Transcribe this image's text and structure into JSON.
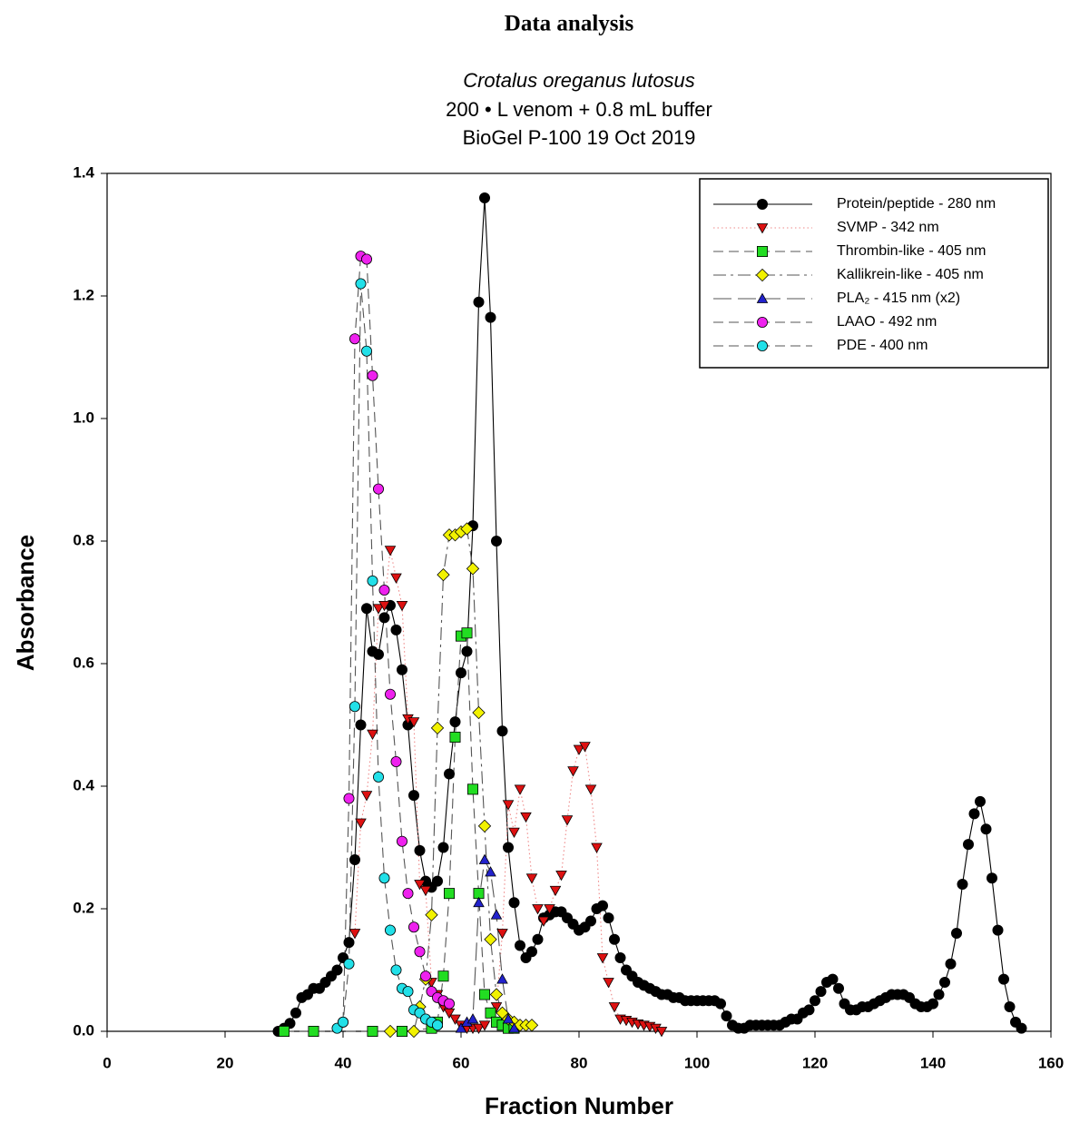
{
  "page_title": "Data analysis",
  "chart_data": {
    "type": "line",
    "title": "Crotalus oreganus lutosus",
    "subtitle": [
      "200 • L venom + 0.8 mL buffer",
      "BioGel P-100 19 Oct 2019"
    ],
    "x_label": "Fraction Number",
    "y_label": "Absorbance",
    "xlim": [
      0,
      160
    ],
    "xticks": [
      0,
      20,
      40,
      60,
      80,
      100,
      120,
      140,
      160
    ],
    "ylim": [
      0,
      1.4
    ],
    "yticks": [
      {
        "value": 0,
        "label": "0.0"
      },
      0.2,
      0.4,
      0.6,
      0.8,
      {
        "value": 1,
        "label": "1.0"
      },
      1.2,
      1.4
    ],
    "grid": false,
    "legend": "upper right",
    "series": [
      {
        "name": "Protein/peptide - 280 nm",
        "color": "#000000",
        "marker": "circle",
        "line_style": "solid",
        "x": [
          29,
          30,
          31,
          32,
          33,
          34,
          35,
          36,
          37,
          38,
          39,
          40,
          41,
          42,
          43,
          44,
          45,
          46,
          47,
          48,
          49,
          50,
          51,
          52,
          53,
          54,
          55,
          56,
          57,
          58,
          59,
          60,
          61,
          62,
          63,
          64,
          65,
          66,
          67,
          68,
          69,
          70,
          71,
          72,
          73,
          74,
          75,
          76,
          77,
          78,
          79,
          80,
          81,
          82,
          83,
          84,
          85,
          86,
          87,
          88,
          89,
          90,
          91,
          92,
          93,
          94,
          95,
          96,
          97,
          98,
          99,
          100,
          101,
          102,
          103,
          104,
          105,
          106,
          107,
          108,
          109,
          110,
          111,
          112,
          113,
          114,
          115,
          116,
          117,
          118,
          119,
          120,
          121,
          122,
          123,
          124,
          125,
          126,
          127,
          128,
          129,
          130,
          131,
          132,
          133,
          134,
          135,
          136,
          137,
          138,
          139,
          140,
          141,
          142,
          143,
          144,
          145,
          146,
          147,
          148,
          149,
          150,
          151,
          152,
          153,
          154,
          155
        ],
        "values": [
          0,
          0.005,
          0.013,
          0.03,
          0.055,
          0.06,
          0.07,
          0.07,
          0.08,
          0.09,
          0.1,
          0.12,
          0.145,
          0.28,
          0.5,
          0.69,
          0.62,
          0.615,
          0.675,
          0.695,
          0.655,
          0.59,
          0.5,
          0.385,
          0.295,
          0.245,
          0.235,
          0.245,
          0.3,
          0.42,
          0.505,
          0.585,
          0.62,
          0.825,
          1.19,
          1.36,
          1.165,
          0.8,
          0.49,
          0.3,
          0.21,
          0.14,
          0.12,
          0.13,
          0.15,
          0.185,
          0.19,
          0.195,
          0.195,
          0.185,
          0.175,
          0.165,
          0.17,
          0.18,
          0.2,
          0.205,
          0.185,
          0.15,
          0.12,
          0.1,
          0.09,
          0.08,
          0.075,
          0.07,
          0.065,
          0.06,
          0.06,
          0.055,
          0.055,
          0.05,
          0.05,
          0.05,
          0.05,
          0.05,
          0.05,
          0.045,
          0.025,
          0.01,
          0.005,
          0.005,
          0.01,
          0.01,
          0.01,
          0.01,
          0.01,
          0.01,
          0.015,
          0.02,
          0.02,
          0.03,
          0.035,
          0.05,
          0.065,
          0.08,
          0.085,
          0.07,
          0.045,
          0.035,
          0.035,
          0.04,
          0.04,
          0.045,
          0.05,
          0.055,
          0.06,
          0.06,
          0.06,
          0.055,
          0.045,
          0.04,
          0.04,
          0.045,
          0.06,
          0.08,
          0.11,
          0.16,
          0.24,
          0.305,
          0.355,
          0.375,
          0.33,
          0.25,
          0.165,
          0.085,
          0.04,
          0.015,
          0.005
        ]
      },
      {
        "name": "SVMP - 342 nm",
        "color": "#dd1111",
        "marker": "triangle-down",
        "line_style": "dotted",
        "x": [
          42,
          43,
          44,
          45,
          46,
          47,
          48,
          49,
          50,
          51,
          52,
          53,
          54,
          55,
          56,
          57,
          58,
          59,
          60,
          61,
          62,
          63,
          64,
          65,
          66,
          67,
          68,
          69,
          70,
          71,
          72,
          73,
          74,
          75,
          76,
          77,
          78,
          79,
          80,
          81,
          82,
          83,
          84,
          85,
          86,
          87,
          88,
          89,
          90,
          91,
          92,
          93,
          94
        ],
        "values": [
          0.16,
          0.34,
          0.385,
          0.485,
          0.69,
          0.695,
          0.785,
          0.74,
          0.695,
          0.51,
          0.505,
          0.24,
          0.23,
          0.08,
          0.06,
          0.04,
          0.03,
          0.02,
          0.01,
          0.005,
          0.005,
          0.005,
          0.01,
          0.03,
          0.04,
          0.16,
          0.37,
          0.325,
          0.395,
          0.35,
          0.25,
          0.2,
          0.18,
          0.2,
          0.23,
          0.255,
          0.345,
          0.425,
          0.46,
          0.465,
          0.395,
          0.3,
          0.12,
          0.08,
          0.04,
          0.02,
          0.018,
          0.015,
          0.012,
          0.01,
          0.008,
          0.005,
          0
        ]
      },
      {
        "name": "Thrombin-like -  405 nm",
        "color": "#22dd22",
        "marker": "square",
        "line_style": "dashed",
        "x": [
          30,
          35,
          45,
          50,
          55,
          56,
          57,
          58,
          59,
          60,
          61,
          62,
          63,
          64,
          65,
          66,
          67,
          68,
          69
        ],
        "values": [
          0,
          0,
          0,
          0,
          0.005,
          0.015,
          0.09,
          0.225,
          0.48,
          0.645,
          0.65,
          0.395,
          0.225,
          0.06,
          0.03,
          0.015,
          0.01,
          0.005,
          0.005
        ]
      },
      {
        "name": "Kallikrein-like - 405 nm",
        "color": "#f2f200",
        "marker": "diamond",
        "line_style": "dash-dot",
        "x": [
          48,
          52,
          53,
          54,
          55,
          56,
          57,
          58,
          59,
          60,
          61,
          62,
          63,
          64,
          65,
          66,
          67,
          68,
          69,
          70,
          71,
          72
        ],
        "values": [
          0,
          0,
          0.04,
          0.085,
          0.19,
          0.495,
          0.745,
          0.81,
          0.81,
          0.815,
          0.82,
          0.755,
          0.52,
          0.335,
          0.15,
          0.06,
          0.03,
          0.02,
          0.015,
          0.01,
          0.01,
          0.01
        ]
      },
      {
        "name": "PLA₂ - 415 nm (x2)",
        "color": "#2222cc",
        "marker": "triangle-up",
        "line_style": "long-dash",
        "x": [
          60,
          61,
          62,
          63,
          64,
          65,
          66,
          67,
          68,
          69
        ],
        "values": [
          0.005,
          0.015,
          0.02,
          0.21,
          0.28,
          0.26,
          0.19,
          0.085,
          0.02,
          0.005
        ]
      },
      {
        "name": "LAAO - 492 nm",
        "color": "#ee22ee",
        "marker": "circle",
        "line_style": "dashed",
        "x": [
          40,
          41,
          42,
          43,
          44,
          45,
          46,
          47,
          48,
          49,
          50,
          51,
          52,
          53,
          54,
          55,
          56,
          57,
          58
        ],
        "values": [
          0.015,
          0.38,
          1.13,
          1.265,
          1.26,
          1.07,
          0.885,
          0.72,
          0.55,
          0.44,
          0.31,
          0.225,
          0.17,
          0.13,
          0.09,
          0.065,
          0.055,
          0.05,
          0.045
        ]
      },
      {
        "name": "PDE - 400 nm",
        "color": "#22e0e8",
        "marker": "circle",
        "line_style": "dashed",
        "x": [
          39,
          40,
          41,
          42,
          43,
          44,
          45,
          46,
          47,
          48,
          49,
          50,
          51,
          52,
          53,
          54,
          55,
          56
        ],
        "values": [
          0.005,
          0.015,
          0.11,
          0.53,
          1.22,
          1.11,
          0.735,
          0.415,
          0.25,
          0.165,
          0.1,
          0.07,
          0.065,
          0.035,
          0.03,
          0.02,
          0.015,
          0.01
        ]
      }
    ]
  }
}
